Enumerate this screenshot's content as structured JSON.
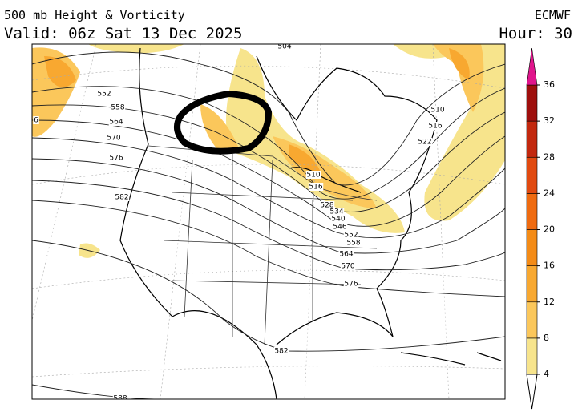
{
  "header": {
    "title": "500 mb Height & Vorticity",
    "valid": "Valid: 06z Sat 13 Dec 2025",
    "model": "ECMWF",
    "hour": "Hour: 30"
  },
  "contour_labels": [
    552,
    558,
    564,
    570,
    576,
    582,
    6,
    504,
    510,
    516,
    528,
    534,
    540,
    546,
    552,
    558,
    564,
    570,
    576,
    510,
    516,
    522,
    582,
    588
  ],
  "colorbar": {
    "ticks": [
      4,
      8,
      12,
      16,
      20,
      24,
      28,
      32,
      36
    ],
    "colors": [
      "#f7e48c",
      "#fbc75b",
      "#f8a830",
      "#f48b16",
      "#ef6b10",
      "#e14a10",
      "#c2280e",
      "#9e0f0d"
    ],
    "top_color": "#e0158c"
  }
}
